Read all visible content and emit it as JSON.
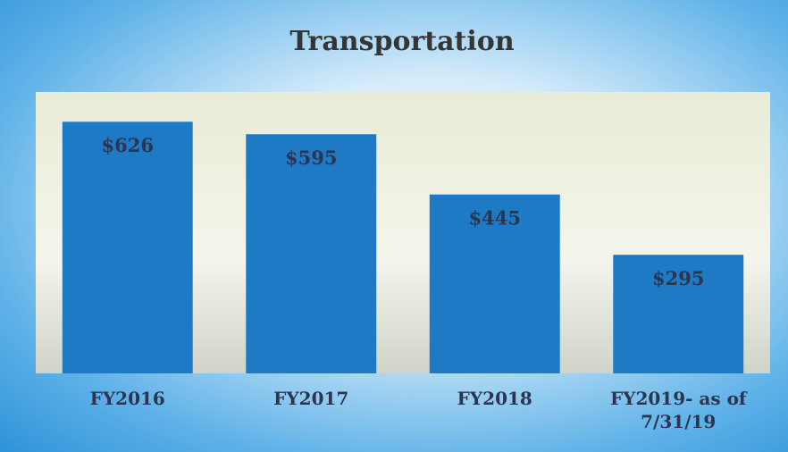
{
  "chart_data": {
    "type": "bar",
    "title": "Transportation",
    "categories": [
      "FY2016",
      "FY2017",
      "FY2018",
      "FY2019- as of 7/31/19"
    ],
    "values": [
      626,
      595,
      445,
      295
    ],
    "value_labels": [
      "$626",
      "$595",
      "$445",
      "$295"
    ],
    "color": "#1f7ac6",
    "ylim": [
      0,
      700
    ]
  }
}
